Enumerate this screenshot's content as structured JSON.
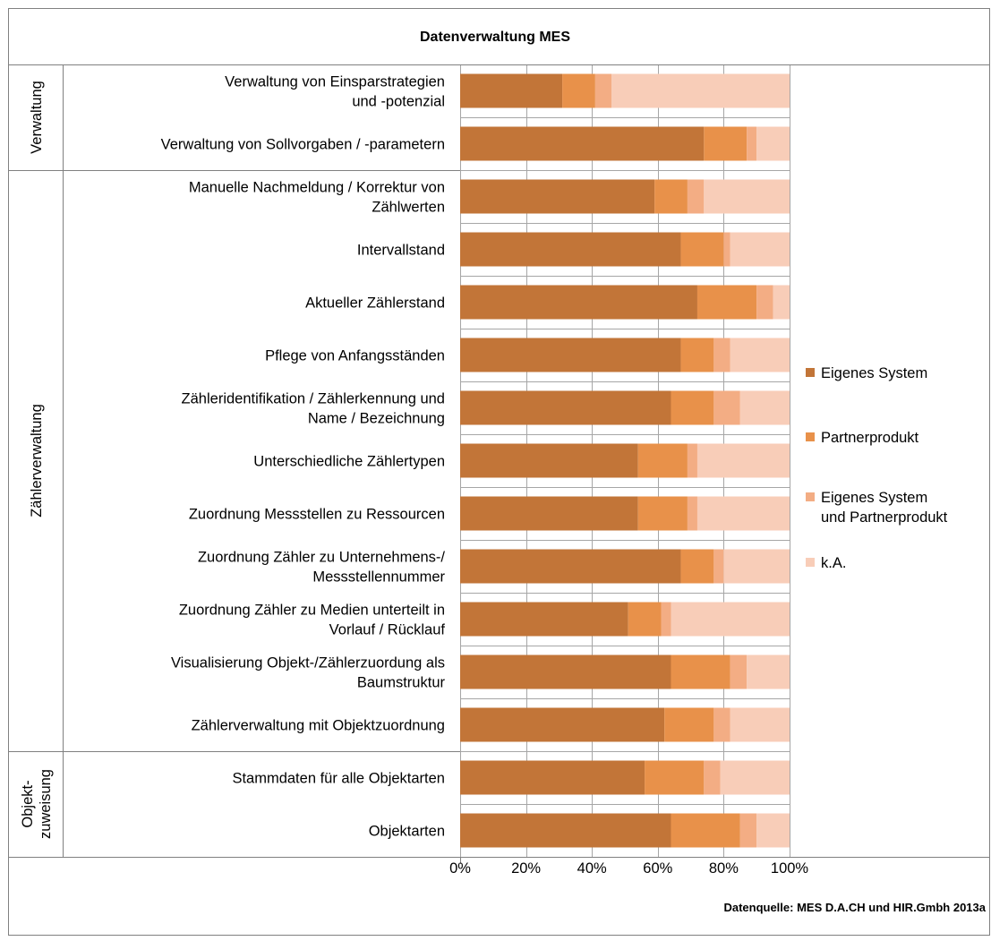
{
  "chart_data": {
    "type": "bar",
    "orientation": "horizontal",
    "stacked": "percent",
    "title": "Datenverwaltung MES",
    "source": "Datenquelle: MES D.A.CH und HIR.Gmbh 2013a",
    "categories": [
      "Verwaltung von Einsparstrategien und -potenzial",
      "Verwaltung von Sollvorgaben / -parametern",
      "Manuelle Nachmeldung / Korrektur von Zählwerten",
      "Intervallstand",
      "Aktueller Zählerstand",
      "Pflege von Anfangsständen",
      "Zähleridentifikation / Zählerkennung und Name / Bezeichnung",
      "Unterschiedliche Zählertypen",
      "Zuordnung Messstellen zu Ressourcen",
      "Zuordnung Zähler zu Unternehmens-/ Messstellennummer",
      "Zuordnung Zähler zu Medien unterteilt in Vorlauf / Rücklauf",
      "Visualisierung Objekt-/Zählerzuordung als Baumstruktur",
      "Zählerverwaltung mit Objektzuordnung",
      "Stammdaten für alle Objektarten",
      "Objektarten"
    ],
    "category_lines": [
      [
        "Verwaltung von Einsparstrategien",
        "und -potenzial"
      ],
      [
        "Verwaltung von Sollvorgaben / -parametern"
      ],
      [
        "Manuelle Nachmeldung / Korrektur von",
        "Zählwerten"
      ],
      [
        "Intervallstand"
      ],
      [
        "Aktueller Zählerstand"
      ],
      [
        "Pflege von Anfangsständen"
      ],
      [
        "Zähleridentifikation / Zählerkennung und",
        "Name / Bezeichnung"
      ],
      [
        "Unterschiedliche Zählertypen"
      ],
      [
        "Zuordnung Messstellen zu Ressourcen"
      ],
      [
        "Zuordnung Zähler zu Unternehmens-/",
        "Messstellennummer"
      ],
      [
        "Zuordnung Zähler zu Medien unterteilt in",
        "Vorlauf / Rücklauf"
      ],
      [
        "Visualisierung Objekt-/Zählerzuordung als",
        "Baumstruktur"
      ],
      [
        "Zählerverwaltung mit Objektzuordnung"
      ],
      [
        "Stammdaten für alle Objektarten"
      ],
      [
        "Objektarten"
      ]
    ],
    "groups": [
      {
        "label_lines": [
          "Verwaltung"
        ],
        "start": 0,
        "end": 1
      },
      {
        "label_lines": [
          "Zählerverwaltung"
        ],
        "start": 2,
        "end": 12
      },
      {
        "label_lines": [
          "Objekt-",
          "zuweisung"
        ],
        "start": 13,
        "end": 14
      }
    ],
    "series": [
      {
        "name": "Eigenes System",
        "color": "#c27538",
        "values": [
          31,
          74,
          59,
          67,
          72,
          67,
          64,
          54,
          54,
          67,
          51,
          64,
          62,
          56,
          64
        ]
      },
      {
        "name": "Partnerprodukt",
        "color": "#e8914a",
        "values": [
          10,
          13,
          10,
          13,
          18,
          10,
          13,
          15,
          15,
          10,
          10,
          18,
          15,
          18,
          21
        ]
      },
      {
        "name": "Eigenes System und Partnerprodukt",
        "color": "#f3ad84",
        "legend_lines": [
          "Eigenes System",
          "und Partnerprodukt"
        ],
        "values": [
          5,
          3,
          5,
          2,
          5,
          5,
          8,
          3,
          3,
          3,
          3,
          5,
          5,
          5,
          5
        ]
      },
      {
        "name": "k.A.",
        "color": "#f8cdb8",
        "values": [
          54,
          10,
          26,
          18,
          5,
          18,
          15,
          28,
          28,
          20,
          36,
          13,
          18,
          21,
          10
        ]
      }
    ],
    "x_ticks": [
      "0%",
      "20%",
      "40%",
      "60%",
      "80%",
      "100%"
    ],
    "xlim": [
      0,
      100
    ],
    "grid": true,
    "legend_position": "right"
  }
}
